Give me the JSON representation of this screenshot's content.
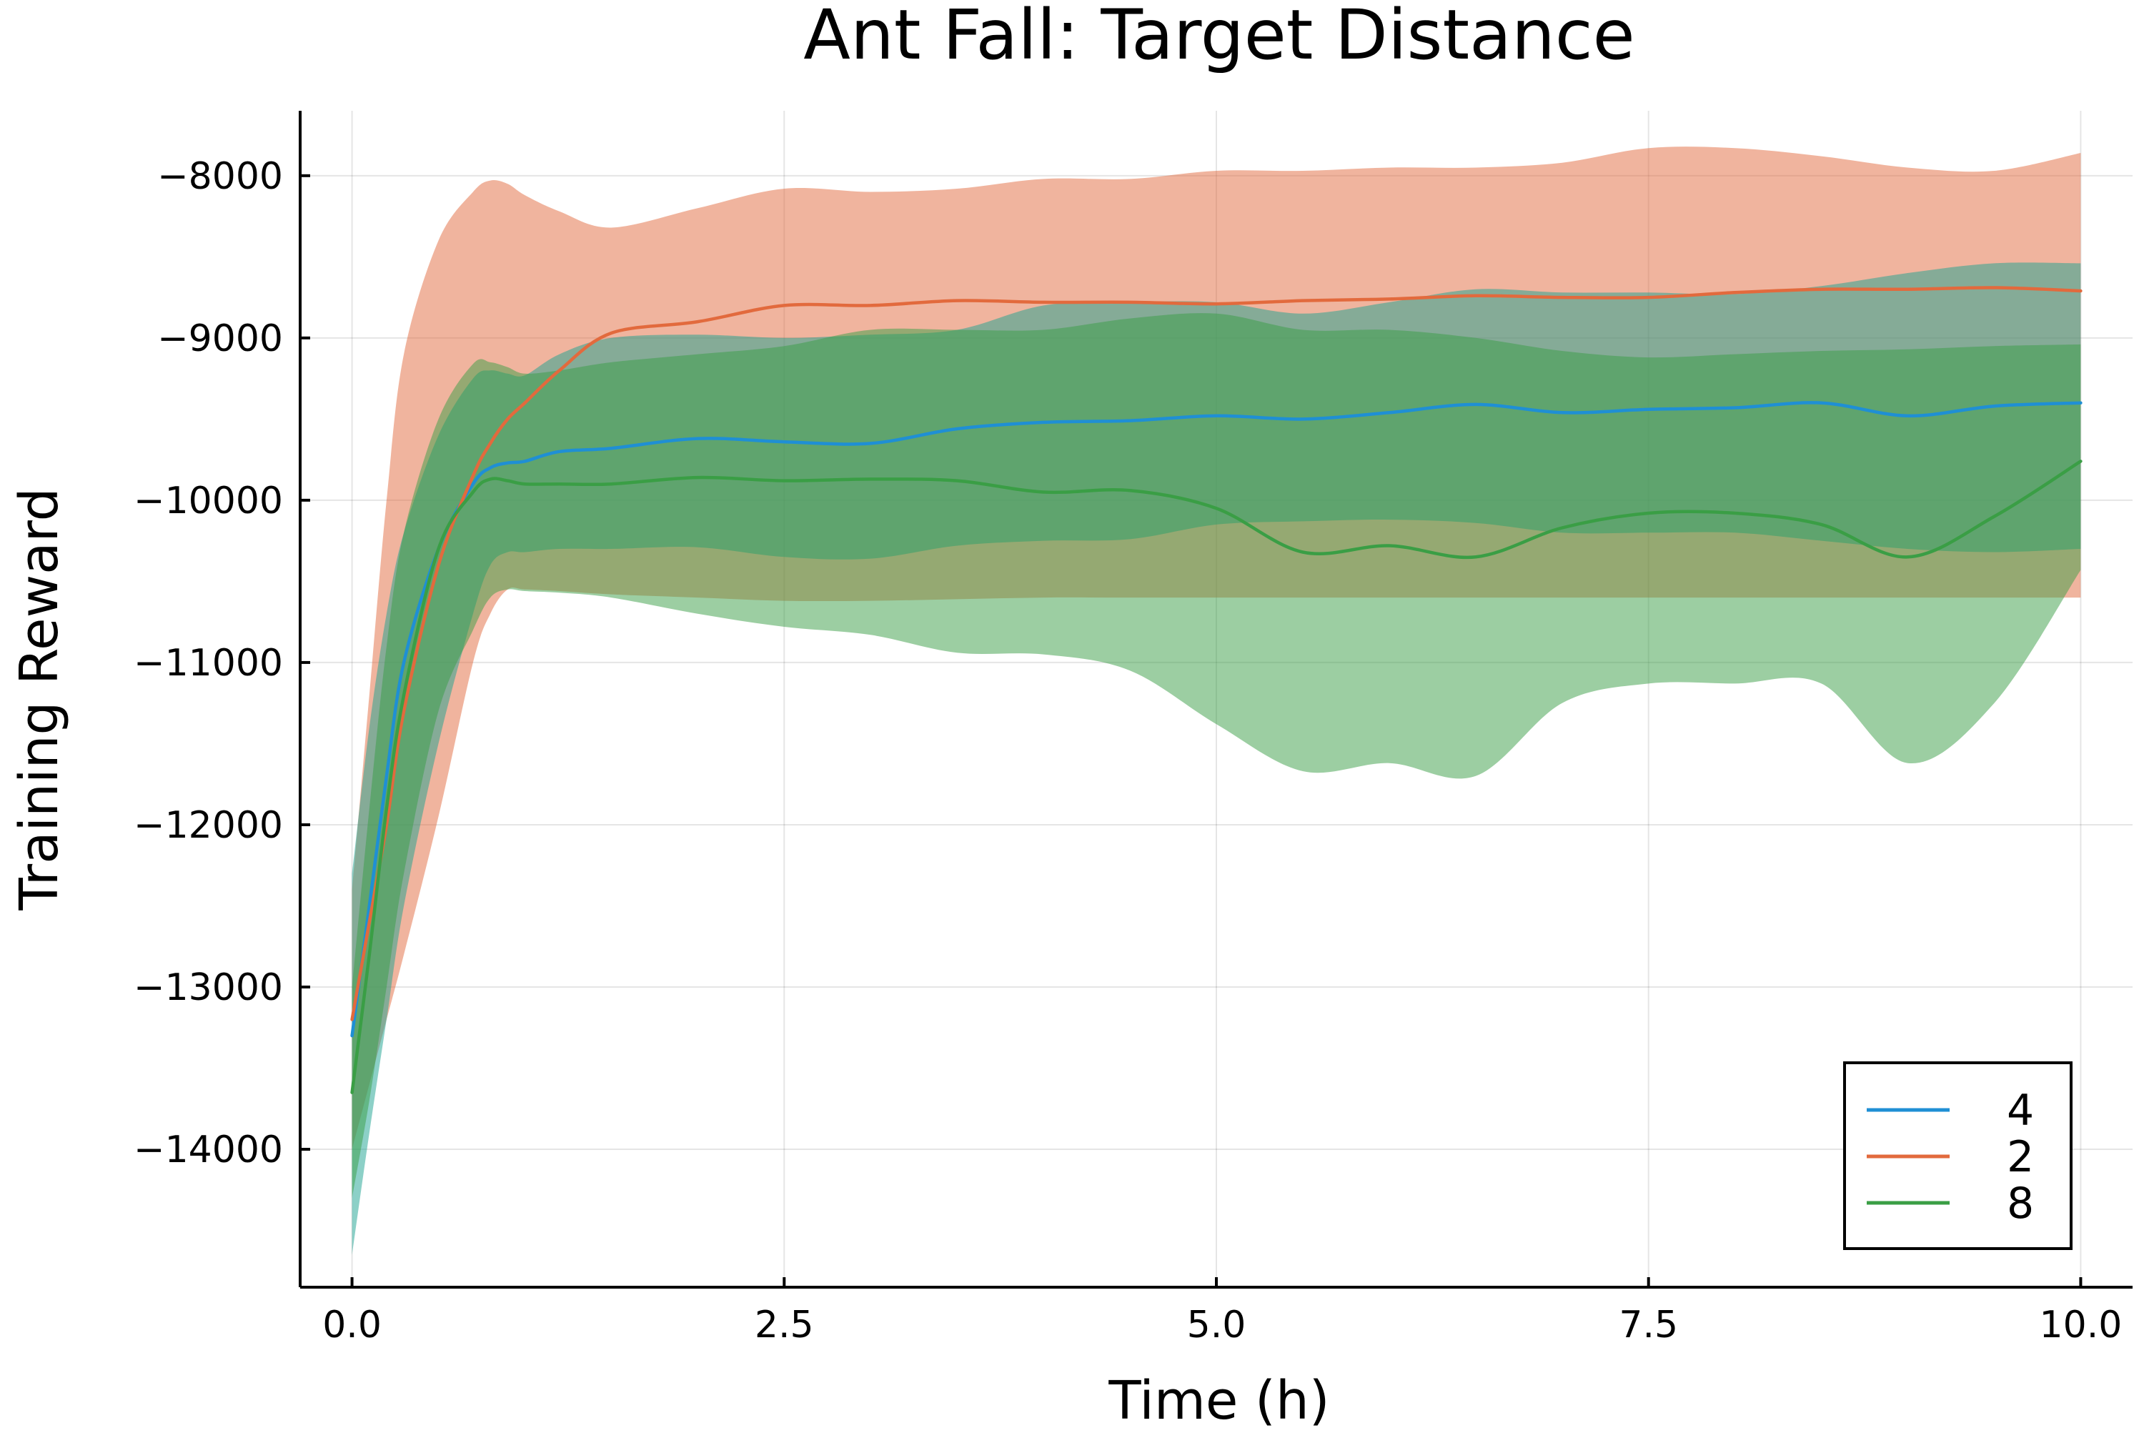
{
  "chart_data": {
    "type": "line",
    "title": "Ant Fall: Target Distance",
    "xlabel": "Time (h)",
    "ylabel": "Training Reward",
    "xlim": [
      -0.3,
      10.3
    ],
    "ylim": [
      -14850,
      -7600
    ],
    "x_ticks": [
      0.0,
      2.5,
      5.0,
      7.5,
      10.0
    ],
    "x_tick_labels": [
      "0.0",
      "2.5",
      "5.0",
      "7.5",
      "10.0"
    ],
    "y_ticks": [
      -14000,
      -13000,
      -12000,
      -11000,
      -10000,
      -9000,
      -8000
    ],
    "y_tick_labels": [
      "−14000",
      "−13000",
      "−12000",
      "−11000",
      "−10000",
      "−9000",
      "−8000"
    ],
    "grid": true,
    "legend_position": "bottom-right",
    "band_opacity": 0.5,
    "series": [
      {
        "name": "4",
        "color": "#1f8fd4",
        "band_color": "#1aa18f",
        "x": [
          0,
          0.1,
          0.2,
          0.3,
          0.5,
          0.7,
          0.8,
          0.9,
          1.0,
          1.2,
          1.5,
          2.0,
          2.5,
          3.0,
          3.5,
          4.0,
          4.5,
          5.0,
          5.5,
          6.0,
          6.5,
          7.0,
          7.5,
          8.0,
          8.5,
          9.0,
          9.5,
          10.0
        ],
        "mean": [
          -13300,
          -12500,
          -11700,
          -11000,
          -10300,
          -9900,
          -9800,
          -9770,
          -9760,
          -9700,
          -9680,
          -9620,
          -9640,
          -9650,
          -9560,
          -9520,
          -9510,
          -9480,
          -9500,
          -9460,
          -9410,
          -9460,
          -9440,
          -9430,
          -9400,
          -9480,
          -9420,
          -9400
        ],
        "upper": [
          -12300,
          -11400,
          -10700,
          -10200,
          -9600,
          -9250,
          -9200,
          -9220,
          -9230,
          -9100,
          -9000,
          -8980,
          -9000,
          -8980,
          -8950,
          -8800,
          -8780,
          -8780,
          -8850,
          -8780,
          -8700,
          -8720,
          -8720,
          -8730,
          -8680,
          -8600,
          -8540,
          -8540
        ],
        "lower": [
          -14650,
          -13900,
          -13200,
          -12500,
          -11500,
          -10700,
          -10400,
          -10320,
          -10320,
          -10300,
          -10300,
          -10290,
          -10350,
          -10360,
          -10280,
          -10250,
          -10240,
          -10150,
          -10130,
          -10120,
          -10140,
          -10200,
          -10200,
          -10200,
          -10250,
          -10300,
          -10320,
          -10300
        ]
      },
      {
        "name": "2",
        "color": "#e26a3d",
        "band_color": "#e26a3d",
        "x": [
          0,
          0.1,
          0.2,
          0.3,
          0.5,
          0.7,
          0.8,
          0.9,
          1.0,
          1.2,
          1.5,
          2.0,
          2.5,
          3.0,
          3.5,
          4.0,
          4.5,
          5.0,
          5.5,
          6.0,
          6.5,
          7.0,
          7.5,
          8.0,
          8.5,
          9.0,
          9.5,
          10.0
        ],
        "mean": [
          -13200,
          -12600,
          -12000,
          -11300,
          -10400,
          -9850,
          -9650,
          -9500,
          -9400,
          -9200,
          -8970,
          -8900,
          -8800,
          -8800,
          -8770,
          -8780,
          -8780,
          -8790,
          -8770,
          -8760,
          -8740,
          -8750,
          -8750,
          -8720,
          -8700,
          -8700,
          -8690,
          -8710
        ],
        "upper": [
          -12400,
          -11200,
          -10000,
          -9100,
          -8400,
          -8100,
          -8030,
          -8050,
          -8120,
          -8220,
          -8320,
          -8200,
          -8080,
          -8100,
          -8080,
          -8020,
          -8020,
          -7970,
          -7970,
          -7950,
          -7950,
          -7920,
          -7830,
          -7830,
          -7880,
          -7950,
          -7970,
          -7860
        ],
        "lower": [
          -14000,
          -13600,
          -13200,
          -12800,
          -11950,
          -11000,
          -10700,
          -10550,
          -10550,
          -10560,
          -10580,
          -10600,
          -10620,
          -10620,
          -10610,
          -10600,
          -10600,
          -10600,
          -10600,
          -10600,
          -10600,
          -10600,
          -10600,
          -10600,
          -10600,
          -10600,
          -10600,
          -10600
        ]
      },
      {
        "name": "8",
        "color": "#3a9e45",
        "band_color": "#3a9e45",
        "x": [
          0,
          0.1,
          0.2,
          0.3,
          0.5,
          0.7,
          0.8,
          0.9,
          1.0,
          1.2,
          1.5,
          2.0,
          2.5,
          3.0,
          3.5,
          4.0,
          4.5,
          5.0,
          5.5,
          6.0,
          6.5,
          7.0,
          7.5,
          8.0,
          8.5,
          9.0,
          9.5,
          10.0
        ],
        "mean": [
          -13650,
          -12800,
          -11900,
          -11200,
          -10300,
          -9950,
          -9870,
          -9880,
          -9900,
          -9900,
          -9900,
          -9860,
          -9880,
          -9870,
          -9880,
          -9950,
          -9940,
          -10050,
          -10320,
          -10280,
          -10350,
          -10170,
          -10080,
          -10080,
          -10150,
          -10350,
          -10100,
          -9760
        ],
        "upper": [
          -13000,
          -11900,
          -10900,
          -10200,
          -9500,
          -9160,
          -9150,
          -9180,
          -9220,
          -9200,
          -9150,
          -9100,
          -9050,
          -8950,
          -8950,
          -8950,
          -8880,
          -8850,
          -8950,
          -8950,
          -9000,
          -9080,
          -9120,
          -9100,
          -9080,
          -9070,
          -9050,
          -9040
        ],
        "lower": [
          -14300,
          -13700,
          -13000,
          -12300,
          -11300,
          -10800,
          -10600,
          -10550,
          -10560,
          -10570,
          -10600,
          -10700,
          -10780,
          -10830,
          -10940,
          -10950,
          -11050,
          -11380,
          -11670,
          -11620,
          -11700,
          -11250,
          -11130,
          -11130,
          -11130,
          -11620,
          -11250,
          -10430
        ]
      }
    ]
  }
}
